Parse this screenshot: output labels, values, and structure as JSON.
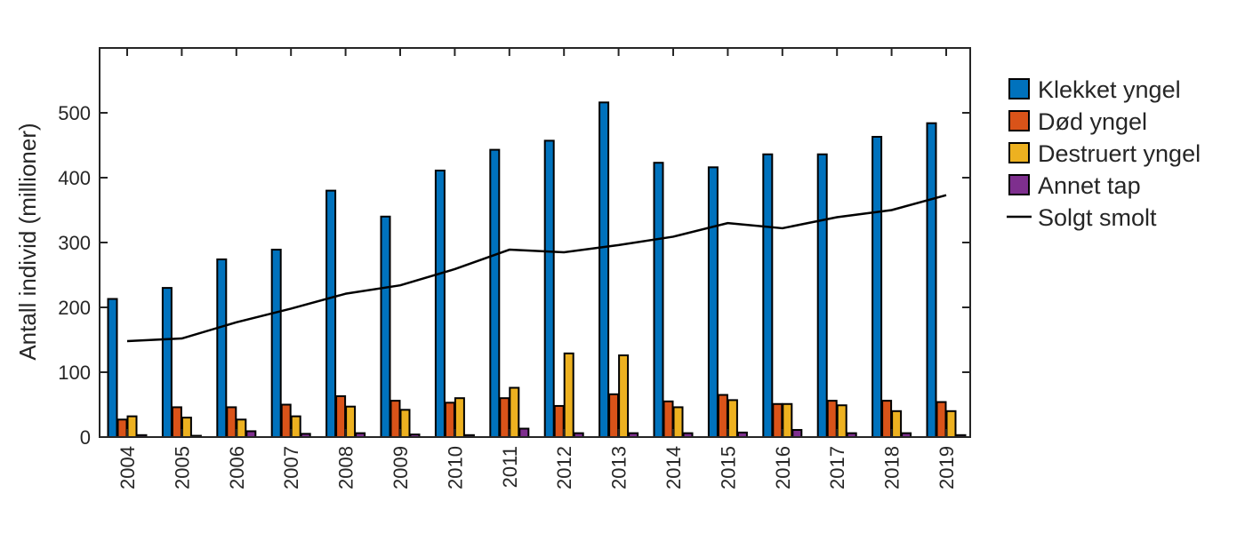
{
  "chart_data": {
    "type": "bar",
    "title": "",
    "xlabel": "",
    "ylabel": "Antall individ (millioner)",
    "ylim": [
      0,
      600
    ],
    "yticks": [
      0,
      100,
      200,
      300,
      400,
      500
    ],
    "grid": false,
    "legend_position": "right",
    "categories": [
      "2004",
      "2005",
      "2006",
      "2007",
      "2008",
      "2009",
      "2010",
      "2011",
      "2012",
      "2013",
      "2014",
      "2015",
      "2016",
      "2017",
      "2018",
      "2019"
    ],
    "series": [
      {
        "name": "Klekket yngel",
        "kind": "bar",
        "color": "#0072BD",
        "values": [
          213,
          230,
          274,
          289,
          380,
          340,
          411,
          443,
          457,
          516,
          423,
          416,
          436,
          436,
          463,
          484
        ]
      },
      {
        "name": "Død yngel",
        "kind": "bar",
        "color": "#D95319",
        "values": [
          27,
          46,
          46,
          50,
          63,
          56,
          53,
          60,
          48,
          66,
          55,
          65,
          51,
          56,
          56,
          54
        ]
      },
      {
        "name": "Destruert yngel",
        "kind": "bar",
        "color": "#EDB120",
        "values": [
          32,
          30,
          27,
          32,
          47,
          42,
          60,
          76,
          129,
          126,
          46,
          57,
          51,
          49,
          40,
          40
        ]
      },
      {
        "name": "Annet tap",
        "kind": "bar",
        "color": "#7E2F8E",
        "values": [
          3,
          2,
          9,
          5,
          6,
          4,
          3,
          13,
          6,
          6,
          6,
          7,
          11,
          6,
          6,
          3
        ]
      },
      {
        "name": "Solgt smolt",
        "kind": "line",
        "color": "#000000",
        "values": [
          148,
          152,
          177,
          198,
          221,
          234,
          259,
          289,
          285,
          296,
          309,
          330,
          322,
          339,
          350,
          373
        ]
      }
    ]
  }
}
